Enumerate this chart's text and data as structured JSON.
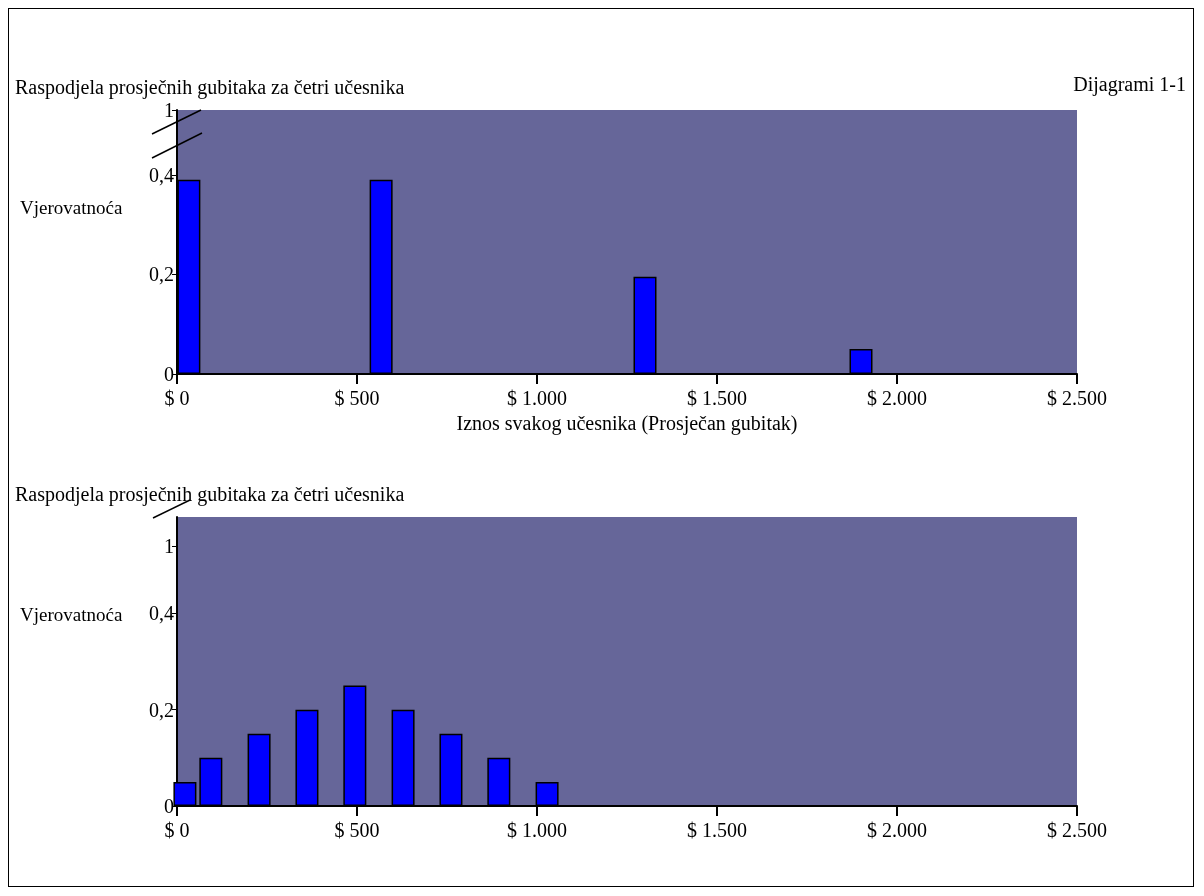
{
  "chart_data": [
    {
      "type": "bar",
      "title": "Raspodjela prosječnih gubitaka za četri učesnika",
      "xlabel": "Iznos svakog učesnika (Prosječan gubitak)",
      "ylabel": "Vjerovatnoća",
      "annotations": [
        "Dijagrami 1-1"
      ],
      "x": [
        33,
        567,
        1300,
        1900
      ],
      "series": [
        {
          "color": "#0000ff",
          "values": [
            0.39,
            0.39,
            0.195,
            0.05
          ]
        }
      ],
      "xlim": [
        0,
        2500
      ],
      "xticks": [
        {
          "value": 0,
          "label": "$ 0"
        },
        {
          "value": 500,
          "label": "$ 500"
        },
        {
          "value": 1000,
          "label": "$ 1.000"
        },
        {
          "value": 1500,
          "label": "$ 1.500"
        },
        {
          "value": 2000,
          "label": "$ 2.000"
        },
        {
          "value": 2500,
          "label": "$ 2.500"
        }
      ],
      "ylim": [
        0,
        0.53
      ],
      "yticks": [
        0,
        {
          "value": 0.2,
          "label": "0,2"
        },
        {
          "value": 0.4,
          "label": "0,4"
        },
        {
          "value": 0.53,
          "label": "1"
        }
      ],
      "grid": false
    },
    {
      "type": "bar",
      "title": "Raspodjela prosječnih gubitaka za četri učesnika",
      "ylabel": "Vjerovatnoća",
      "x": [
        22,
        94,
        228,
        361,
        494,
        628,
        761,
        894,
        1028
      ],
      "series": [
        {
          "color": "#0000ff",
          "values": [
            0.05,
            0.1,
            0.15,
            0.2,
            0.25,
            0.2,
            0.15,
            0.1,
            0.05
          ]
        }
      ],
      "xlim": [
        0,
        2500
      ],
      "xticks": [
        {
          "value": 0,
          "label": "$ 0"
        },
        {
          "value": 500,
          "label": "$ 500"
        },
        {
          "value": 1000,
          "label": "$ 1.000"
        },
        {
          "value": 1500,
          "label": "$ 1.500"
        },
        {
          "value": 2000,
          "label": "$ 2.000"
        },
        {
          "value": 2500,
          "label": "$ 2.500"
        }
      ],
      "ylim": [
        0,
        0.6
      ],
      "yticks": [
        0,
        {
          "value": 0.2,
          "label": "0,2"
        },
        {
          "value": 0.4,
          "label": "0,4"
        },
        {
          "value": 0.54,
          "label": "1"
        }
      ],
      "grid": false
    }
  ]
}
